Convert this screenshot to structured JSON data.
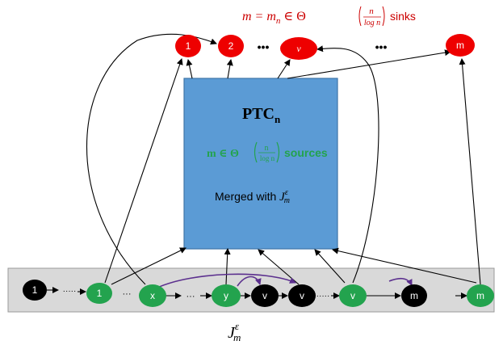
{
  "sinks_caption": {
    "lhs": "m = m",
    "sub": "n",
    "rel": " ∈ Θ",
    "num": "n",
    "den": "log n",
    "word": "sinks"
  },
  "sink_nodes": [
    "1",
    "2",
    "v",
    "m"
  ],
  "sink_ellipsis": [
    "•••",
    "•••"
  ],
  "box": {
    "title": "PTC",
    "title_sub": "n",
    "sources_lhs": "m ∈ Θ",
    "sources_num": "n",
    "sources_den": "log n",
    "sources_word": "sources",
    "merged_text": "Merged with ",
    "merged_J": "J",
    "merged_sup": "ε",
    "merged_sub": "m"
  },
  "chain_nodes": [
    "1",
    "1",
    "x",
    "y",
    "v",
    "v",
    "v",
    "m",
    "m"
  ],
  "chain_ellipsis": [
    "·····",
    "···",
    "···",
    "·····"
  ],
  "bottom_label": {
    "J": "J",
    "sup": "ε",
    "sub": "m"
  },
  "colors": {
    "sink": "#ee0000",
    "caption": "#cc0000",
    "box_fill": "#5b9bd5",
    "box_stroke": "#3f76a8",
    "green": "#23a34e",
    "sources_text": "#23a34e",
    "black_node": "#000000",
    "band": "#d9d9d9",
    "purple": "#5b2f8e"
  }
}
